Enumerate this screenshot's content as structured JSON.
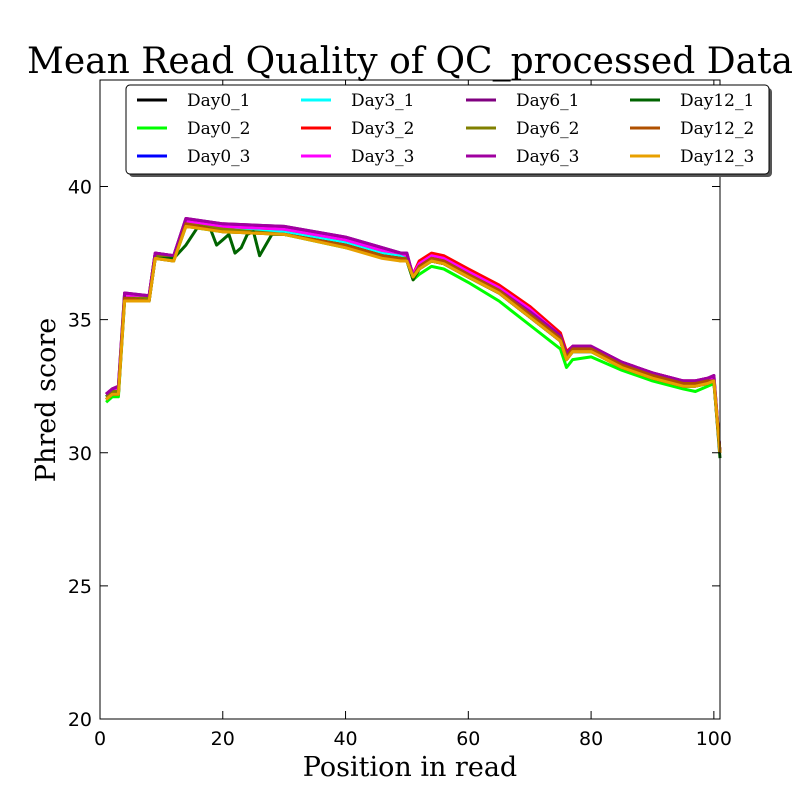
{
  "chart_data": {
    "type": "line",
    "title": "Mean Read Quality of QC_processed Data",
    "xlabel": "Position in read",
    "ylabel": "Phred score",
    "xlim": [
      0,
      101
    ],
    "ylim": [
      20,
      44
    ],
    "xticks": [
      0,
      20,
      40,
      60,
      80,
      100
    ],
    "yticks": [
      20,
      25,
      30,
      35,
      40
    ],
    "grid": false,
    "legend_position": "top",
    "legend_columns": 4,
    "x": [
      1,
      2,
      3,
      4,
      8,
      9,
      12,
      14,
      20,
      30,
      40,
      46,
      49,
      50,
      51,
      52,
      54,
      56,
      60,
      65,
      70,
      75,
      76,
      77,
      80,
      85,
      90,
      95,
      97,
      99,
      100,
      101
    ],
    "series": [
      {
        "name": "Day0_1",
        "color": "#000000",
        "values": [
          32.1,
          32.3,
          32.3,
          35.8,
          35.8,
          37.4,
          37.3,
          38.6,
          38.4,
          38.3,
          37.9,
          37.5,
          37.4,
          37.3,
          36.5,
          36.9,
          37.2,
          37.1,
          36.6,
          36.0,
          35.1,
          34.2,
          33.5,
          33.8,
          33.8,
          33.3,
          32.9,
          32.6,
          32.6,
          32.7,
          32.7,
          30.0
        ]
      },
      {
        "name": "Day0_2",
        "color": "#00ff00",
        "values": [
          31.9,
          32.1,
          32.1,
          35.7,
          35.7,
          37.3,
          37.2,
          38.5,
          38.3,
          38.2,
          37.7,
          37.4,
          37.2,
          37.2,
          36.5,
          36.7,
          37.0,
          36.9,
          36.4,
          35.7,
          34.8,
          33.9,
          33.2,
          33.5,
          33.6,
          33.1,
          32.7,
          32.4,
          32.3,
          32.5,
          32.6,
          30.0
        ]
      },
      {
        "name": "Day0_3",
        "color": "#0000ff",
        "values": [
          32.1,
          32.3,
          32.3,
          35.8,
          35.8,
          37.4,
          37.3,
          38.7,
          38.4,
          38.3,
          37.9,
          37.5,
          37.4,
          37.3,
          36.6,
          37.0,
          37.3,
          37.2,
          36.7,
          36.1,
          35.2,
          34.3,
          33.6,
          33.9,
          33.9,
          33.3,
          32.9,
          32.6,
          32.6,
          32.7,
          32.7,
          30.0
        ]
      },
      {
        "name": "Day3_1",
        "color": "#00ffff",
        "values": [
          32.1,
          32.3,
          32.3,
          35.8,
          35.8,
          37.4,
          37.3,
          38.6,
          38.4,
          38.3,
          37.9,
          37.5,
          37.4,
          37.3,
          36.6,
          37.0,
          37.3,
          37.2,
          36.7,
          36.1,
          35.2,
          34.3,
          33.6,
          33.9,
          33.9,
          33.3,
          32.9,
          32.6,
          32.6,
          32.7,
          32.7,
          30.0
        ]
      },
      {
        "name": "Day3_2",
        "color": "#ff0000",
        "values": [
          32.2,
          32.4,
          32.4,
          35.9,
          35.9,
          37.5,
          37.4,
          38.7,
          38.5,
          38.4,
          38.0,
          37.6,
          37.5,
          37.4,
          36.7,
          37.2,
          37.5,
          37.4,
          36.9,
          36.3,
          35.5,
          34.5,
          33.8,
          34.0,
          34.0,
          33.4,
          33.0,
          32.7,
          32.7,
          32.8,
          32.8,
          30.0
        ]
      },
      {
        "name": "Day3_3",
        "color": "#ff00ff",
        "values": [
          32.2,
          32.4,
          32.4,
          35.9,
          35.9,
          37.5,
          37.4,
          38.7,
          38.5,
          38.4,
          38.0,
          37.6,
          37.5,
          37.4,
          36.7,
          37.1,
          37.4,
          37.3,
          36.8,
          36.2,
          35.4,
          34.4,
          33.7,
          34.0,
          34.0,
          33.4,
          33.0,
          32.7,
          32.7,
          32.8,
          32.8,
          30.0
        ]
      },
      {
        "name": "Day6_1",
        "color": "#800080",
        "values": [
          32.2,
          32.4,
          32.5,
          36.0,
          35.9,
          37.5,
          37.4,
          38.8,
          38.6,
          38.5,
          38.1,
          37.7,
          37.5,
          37.5,
          36.6,
          37.0,
          37.3,
          37.2,
          36.7,
          36.1,
          35.3,
          34.4,
          33.7,
          34.0,
          34.0,
          33.4,
          33.0,
          32.7,
          32.7,
          32.8,
          32.9,
          30.0
        ]
      },
      {
        "name": "Day6_2",
        "color": "#808000",
        "values": [
          32.1,
          32.3,
          32.3,
          35.8,
          35.8,
          37.4,
          37.3,
          38.6,
          38.4,
          38.2,
          37.8,
          37.4,
          37.3,
          37.3,
          36.5,
          36.9,
          37.2,
          37.1,
          36.6,
          36.0,
          35.1,
          34.2,
          33.5,
          33.8,
          33.8,
          33.2,
          32.8,
          32.5,
          32.5,
          32.6,
          32.7,
          30.0
        ]
      },
      {
        "name": "Day6_3",
        "color": "#a000a0",
        "values": [
          32.2,
          32.4,
          32.5,
          36.0,
          35.9,
          37.5,
          37.4,
          38.8,
          38.6,
          38.5,
          38.1,
          37.7,
          37.5,
          37.5,
          36.6,
          37.0,
          37.3,
          37.2,
          36.7,
          36.1,
          35.3,
          34.4,
          33.7,
          34.0,
          34.0,
          33.4,
          33.0,
          32.7,
          32.7,
          32.8,
          32.9,
          30.0
        ]
      },
      {
        "name": "Day12_1",
        "color": "#006400",
        "x": [
          1,
          2,
          3,
          4,
          8,
          9,
          12,
          14,
          16,
          18,
          19,
          20,
          21,
          22,
          23,
          24,
          25,
          26,
          27,
          28,
          30,
          40,
          46,
          49,
          50,
          51,
          52,
          54,
          56,
          60,
          65,
          70,
          75,
          76,
          77,
          80,
          85,
          90,
          95,
          97,
          99,
          100,
          101
        ],
        "values": [
          32.0,
          32.2,
          32.2,
          35.8,
          35.7,
          37.3,
          37.3,
          37.8,
          38.5,
          38.4,
          37.8,
          38.0,
          38.2,
          37.5,
          37.7,
          38.2,
          38.3,
          37.4,
          37.8,
          38.2,
          38.2,
          37.8,
          37.4,
          37.3,
          37.2,
          36.5,
          36.9,
          37.2,
          37.1,
          36.6,
          36.0,
          35.1,
          34.2,
          33.5,
          33.8,
          33.8,
          33.2,
          32.8,
          32.5,
          32.5,
          32.6,
          32.7,
          29.8
        ]
      },
      {
        "name": "Day12_2",
        "color": "#b05000",
        "values": [
          32.0,
          32.2,
          32.2,
          35.8,
          35.7,
          37.3,
          37.2,
          38.6,
          38.3,
          38.2,
          37.8,
          37.4,
          37.3,
          37.2,
          36.6,
          37.0,
          37.3,
          37.2,
          36.7,
          36.1,
          35.2,
          34.3,
          33.6,
          33.9,
          33.9,
          33.3,
          32.9,
          32.6,
          32.6,
          32.7,
          32.7,
          30.0
        ]
      },
      {
        "name": "Day12_3",
        "color": "#e8a000",
        "values": [
          32.0,
          32.2,
          32.2,
          35.7,
          35.7,
          37.3,
          37.2,
          38.5,
          38.3,
          38.2,
          37.7,
          37.3,
          37.2,
          37.2,
          36.6,
          36.9,
          37.2,
          37.1,
          36.6,
          36.0,
          35.1,
          34.2,
          33.5,
          33.8,
          33.8,
          33.2,
          32.8,
          32.5,
          32.5,
          32.6,
          32.7,
          30.0
        ]
      }
    ]
  }
}
